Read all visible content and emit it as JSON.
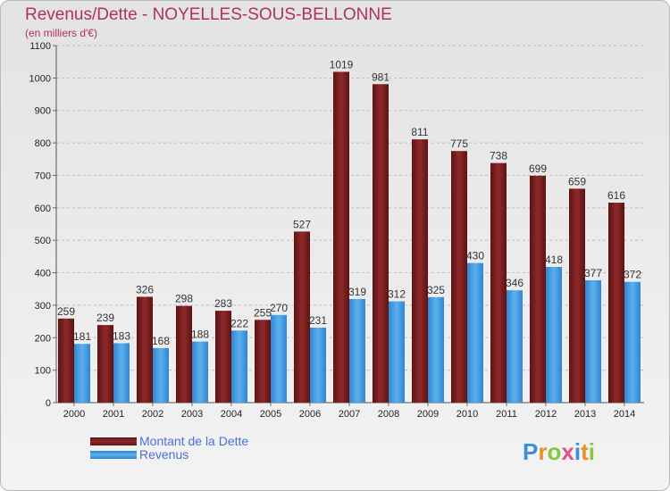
{
  "title": "Revenus/Dette - NOYELLES-SOUS-BELLONNE",
  "subtitle": "(en milliers d'€)",
  "logo": {
    "letters": [
      "P",
      "r",
      "o",
      "x",
      "i",
      "t",
      "i"
    ]
  },
  "colors": {
    "dette": "#7b1f1f",
    "revenus": "#3f97e0",
    "title": "#b0305f",
    "legend": "#4a6fd8"
  },
  "chart_data": {
    "type": "bar",
    "categories": [
      "2000",
      "2001",
      "2002",
      "2003",
      "2004",
      "2005",
      "2006",
      "2007",
      "2008",
      "2009",
      "2010",
      "2011",
      "2012",
      "2013",
      "2014"
    ],
    "series": [
      {
        "name": "Montant de la Dette",
        "values": [
          259,
          239,
          326,
          298,
          283,
          255,
          527,
          1019,
          981,
          811,
          775,
          738,
          699,
          659,
          616
        ]
      },
      {
        "name": "Revenus",
        "values": [
          181,
          183,
          168,
          188,
          222,
          270,
          231,
          319,
          312,
          325,
          430,
          346,
          418,
          377,
          372
        ]
      }
    ],
    "ylim": [
      0,
      1100
    ],
    "yticks": [
      0,
      100,
      200,
      300,
      400,
      500,
      600,
      700,
      800,
      900,
      1000,
      1100
    ],
    "grid": true,
    "legend": "bottom-left"
  }
}
